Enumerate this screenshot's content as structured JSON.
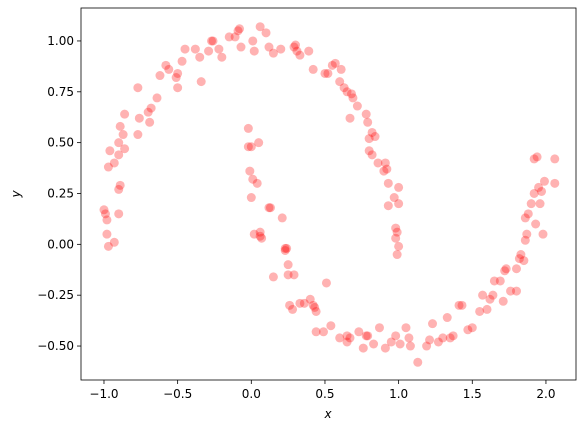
{
  "chart_data": {
    "type": "scatter",
    "xlabel": "x",
    "ylabel": "y",
    "color": "#ff0000",
    "alpha": 0.3,
    "x": [
      -1.0,
      -0.99,
      -0.98,
      -0.98,
      -0.97,
      -0.93,
      -0.9,
      -0.97,
      -0.96,
      -0.93,
      -0.9,
      -0.9,
      -0.89,
      -0.9,
      -0.89,
      -0.87,
      -0.86,
      -0.86,
      -0.77,
      -0.76,
      -0.77,
      -0.7,
      -0.68,
      -0.69,
      -0.64,
      -0.62,
      -0.58,
      -0.56,
      -0.51,
      -0.5,
      -0.5,
      -0.47,
      -0.45,
      -0.38,
      -0.35,
      -0.34,
      -0.29,
      -0.27,
      -0.26,
      -0.22,
      -0.2,
      -0.15,
      -0.11,
      -0.09,
      -0.08,
      -0.07,
      0.01,
      0.02,
      0.06,
      0.1,
      0.12,
      0.15,
      0.2,
      0.29,
      0.3,
      0.31,
      0.33,
      0.39,
      0.42,
      0.5,
      0.52,
      0.55,
      0.57,
      0.6,
      0.61,
      0.63,
      0.65,
      0.67,
      0.68,
      0.69,
      0.72,
      0.78,
      0.79,
      0.8,
      0.82,
      0.84,
      0.8,
      0.82,
      0.86,
      0.9,
      0.91,
      0.92,
      0.93,
      0.93,
      0.97,
      1.0,
      1.0,
      0.98,
      0.99,
      0.98,
      1.0,
      0.99,
      -0.02,
      -0.02,
      0.0,
      0.05,
      -0.01,
      0.01,
      0.04,
      0.0,
      0.02,
      0.06,
      0.07,
      0.06,
      0.12,
      0.13,
      0.21,
      0.15,
      0.23,
      0.23,
      0.24,
      0.25,
      0.25,
      0.26,
      0.28,
      0.29,
      0.33,
      0.36,
      0.4,
      0.42,
      0.43,
      0.44,
      0.44,
      0.49,
      0.51,
      0.54,
      0.6,
      0.65,
      0.65,
      0.67,
      0.73,
      0.76,
      0.78,
      0.79,
      0.83,
      0.87,
      0.91,
      0.95,
      0.98,
      1.01,
      1.05,
      1.07,
      1.08,
      1.13,
      1.19,
      1.21,
      1.23,
      1.27,
      1.3,
      1.33,
      1.35,
      1.37,
      1.41,
      1.43,
      1.47,
      1.5,
      1.55,
      1.57,
      1.6,
      1.62,
      1.64,
      1.65,
      1.69,
      1.71,
      1.72,
      1.73,
      1.76,
      1.8,
      1.8,
      1.82,
      1.83,
      1.85,
      1.86,
      1.87,
      1.86,
      1.88,
      1.9,
      1.92,
      1.93,
      1.94,
      1.95,
      1.96,
      1.97,
      1.98,
      1.99,
      1.92,
      2.06,
      2.06
    ],
    "values": [
      0.17,
      0.15,
      0.12,
      0.05,
      -0.01,
      0.01,
      0.15,
      0.38,
      0.46,
      0.4,
      0.44,
      0.27,
      0.29,
      0.5,
      0.58,
      0.54,
      0.64,
      0.47,
      0.54,
      0.62,
      0.77,
      0.65,
      0.67,
      0.6,
      0.72,
      0.83,
      0.88,
      0.86,
      0.82,
      0.84,
      0.77,
      0.9,
      0.96,
      0.96,
      0.92,
      0.8,
      0.95,
      1.0,
      1.0,
      0.96,
      0.92,
      1.02,
      1.02,
      1.05,
      1.06,
      0.97,
      1.0,
      0.95,
      1.07,
      1.04,
      0.97,
      0.94,
      0.96,
      0.97,
      0.98,
      0.95,
      0.93,
      0.95,
      0.86,
      0.84,
      0.84,
      0.88,
      0.89,
      0.8,
      0.86,
      0.77,
      0.75,
      0.62,
      0.74,
      0.72,
      0.68,
      0.64,
      0.6,
      0.52,
      0.55,
      0.53,
      0.46,
      0.44,
      0.4,
      0.36,
      0.4,
      0.37,
      0.3,
      0.19,
      0.23,
      0.28,
      0.2,
      0.08,
      0.06,
      0.03,
      -0.01,
      -0.05,
      0.57,
      0.48,
      0.48,
      0.5,
      0.36,
      0.32,
      0.3,
      0.23,
      0.05,
      0.06,
      0.03,
      0.04,
      0.18,
      0.18,
      0.13,
      -0.16,
      -0.02,
      -0.03,
      -0.02,
      -0.1,
      -0.15,
      -0.3,
      -0.32,
      -0.15,
      -0.29,
      -0.29,
      -0.27,
      -0.3,
      -0.31,
      -0.33,
      -0.43,
      -0.43,
      -0.19,
      -0.4,
      -0.46,
      -0.45,
      -0.48,
      -0.46,
      -0.43,
      -0.51,
      -0.45,
      -0.45,
      -0.49,
      -0.41,
      -0.51,
      -0.48,
      -0.45,
      -0.49,
      -0.41,
      -0.46,
      -0.5,
      -0.58,
      -0.5,
      -0.47,
      -0.39,
      -0.48,
      -0.46,
      -0.36,
      -0.46,
      -0.45,
      -0.3,
      -0.3,
      -0.42,
      -0.41,
      -0.33,
      -0.25,
      -0.32,
      -0.27,
      -0.25,
      -0.18,
      -0.18,
      -0.28,
      -0.13,
      -0.12,
      -0.23,
      -0.23,
      -0.12,
      -0.07,
      -0.05,
      -0.08,
      0.02,
      0.05,
      0.13,
      0.15,
      0.2,
      0.25,
      0.1,
      0.43,
      0.28,
      0.2,
      0.26,
      0.05,
      0.31,
      0.42,
      0.42,
      0.3
    ],
    "xlim": [
      -1.156,
      2.204
    ],
    "ylim": [
      -0.667,
      1.162
    ],
    "xticks": [
      {
        "value": -1.0,
        "label": "−1.0"
      },
      {
        "value": -0.5,
        "label": "−0.5"
      },
      {
        "value": 0.0,
        "label": "0.0"
      },
      {
        "value": 0.5,
        "label": "0.5"
      },
      {
        "value": 1.0,
        "label": "1.0"
      },
      {
        "value": 1.5,
        "label": "1.5"
      },
      {
        "value": 2.0,
        "label": "2.0"
      }
    ],
    "yticks": [
      {
        "value": -0.5,
        "label": "−0.50"
      },
      {
        "value": -0.25,
        "label": "−0.25"
      },
      {
        "value": 0.0,
        "label": "0.00"
      },
      {
        "value": 0.25,
        "label": "0.25"
      },
      {
        "value": 0.5,
        "label": "0.50"
      },
      {
        "value": 0.75,
        "label": "0.75"
      },
      {
        "value": 1.0,
        "label": "1.00"
      }
    ]
  }
}
